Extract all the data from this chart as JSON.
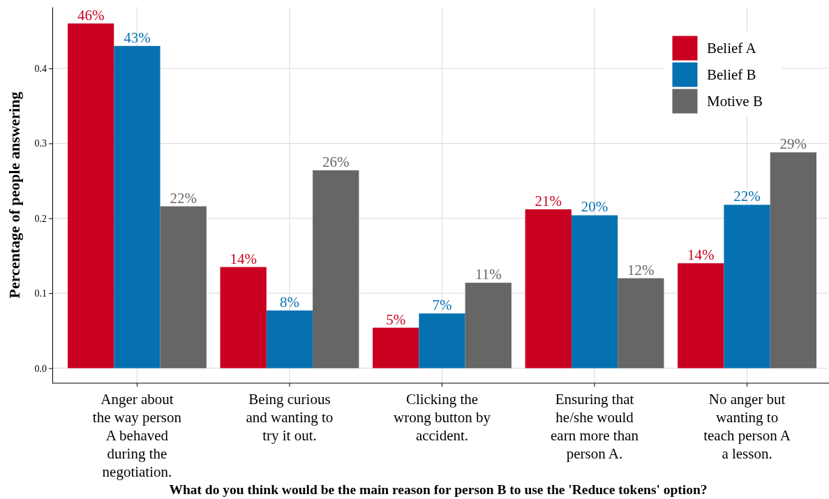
{
  "chart_data": {
    "type": "bar",
    "xlabel": "What do you think would be the main reason for person B to use the 'Reduce tokens' option?",
    "ylabel": "Percentage of people answering",
    "categories": [
      "Anger about\nthe way person\nA behaved\nduring the\nnegotiation.",
      "Being curious\nand wanting to\ntry it out.",
      "Clicking the\nwrong button by\naccident.",
      "Ensuring that\nhe/she would\nearn more than\nperson A.",
      "No anger but\nwanting to\nteach person A\na lesson."
    ],
    "series": [
      {
        "name": "Belief A",
        "color": "#ca0020",
        "values": [
          0.46,
          0.135,
          0.054,
          0.212,
          0.14
        ],
        "value_labels": [
          "46%",
          "14%",
          "5%",
          "21%",
          "14%"
        ]
      },
      {
        "name": "Belief B",
        "color": "#0571b0",
        "values": [
          0.43,
          0.077,
          0.073,
          0.204,
          0.218
        ],
        "value_labels": [
          "43%",
          "8%",
          "7%",
          "20%",
          "22%"
        ]
      },
      {
        "name": "Motive B",
        "color": "#666666",
        "values": [
          0.216,
          0.264,
          0.114,
          0.12,
          0.288
        ],
        "value_labels": [
          "22%",
          "26%",
          "11%",
          "12%",
          "29%"
        ]
      }
    ],
    "ylim": [
      -0.02,
      0.482
    ],
    "yticks": [
      {
        "value": 0,
        "label": "0.0"
      },
      0.1,
      0.2,
      0.3,
      0.4
    ],
    "grid": true,
    "legend": "top right"
  }
}
